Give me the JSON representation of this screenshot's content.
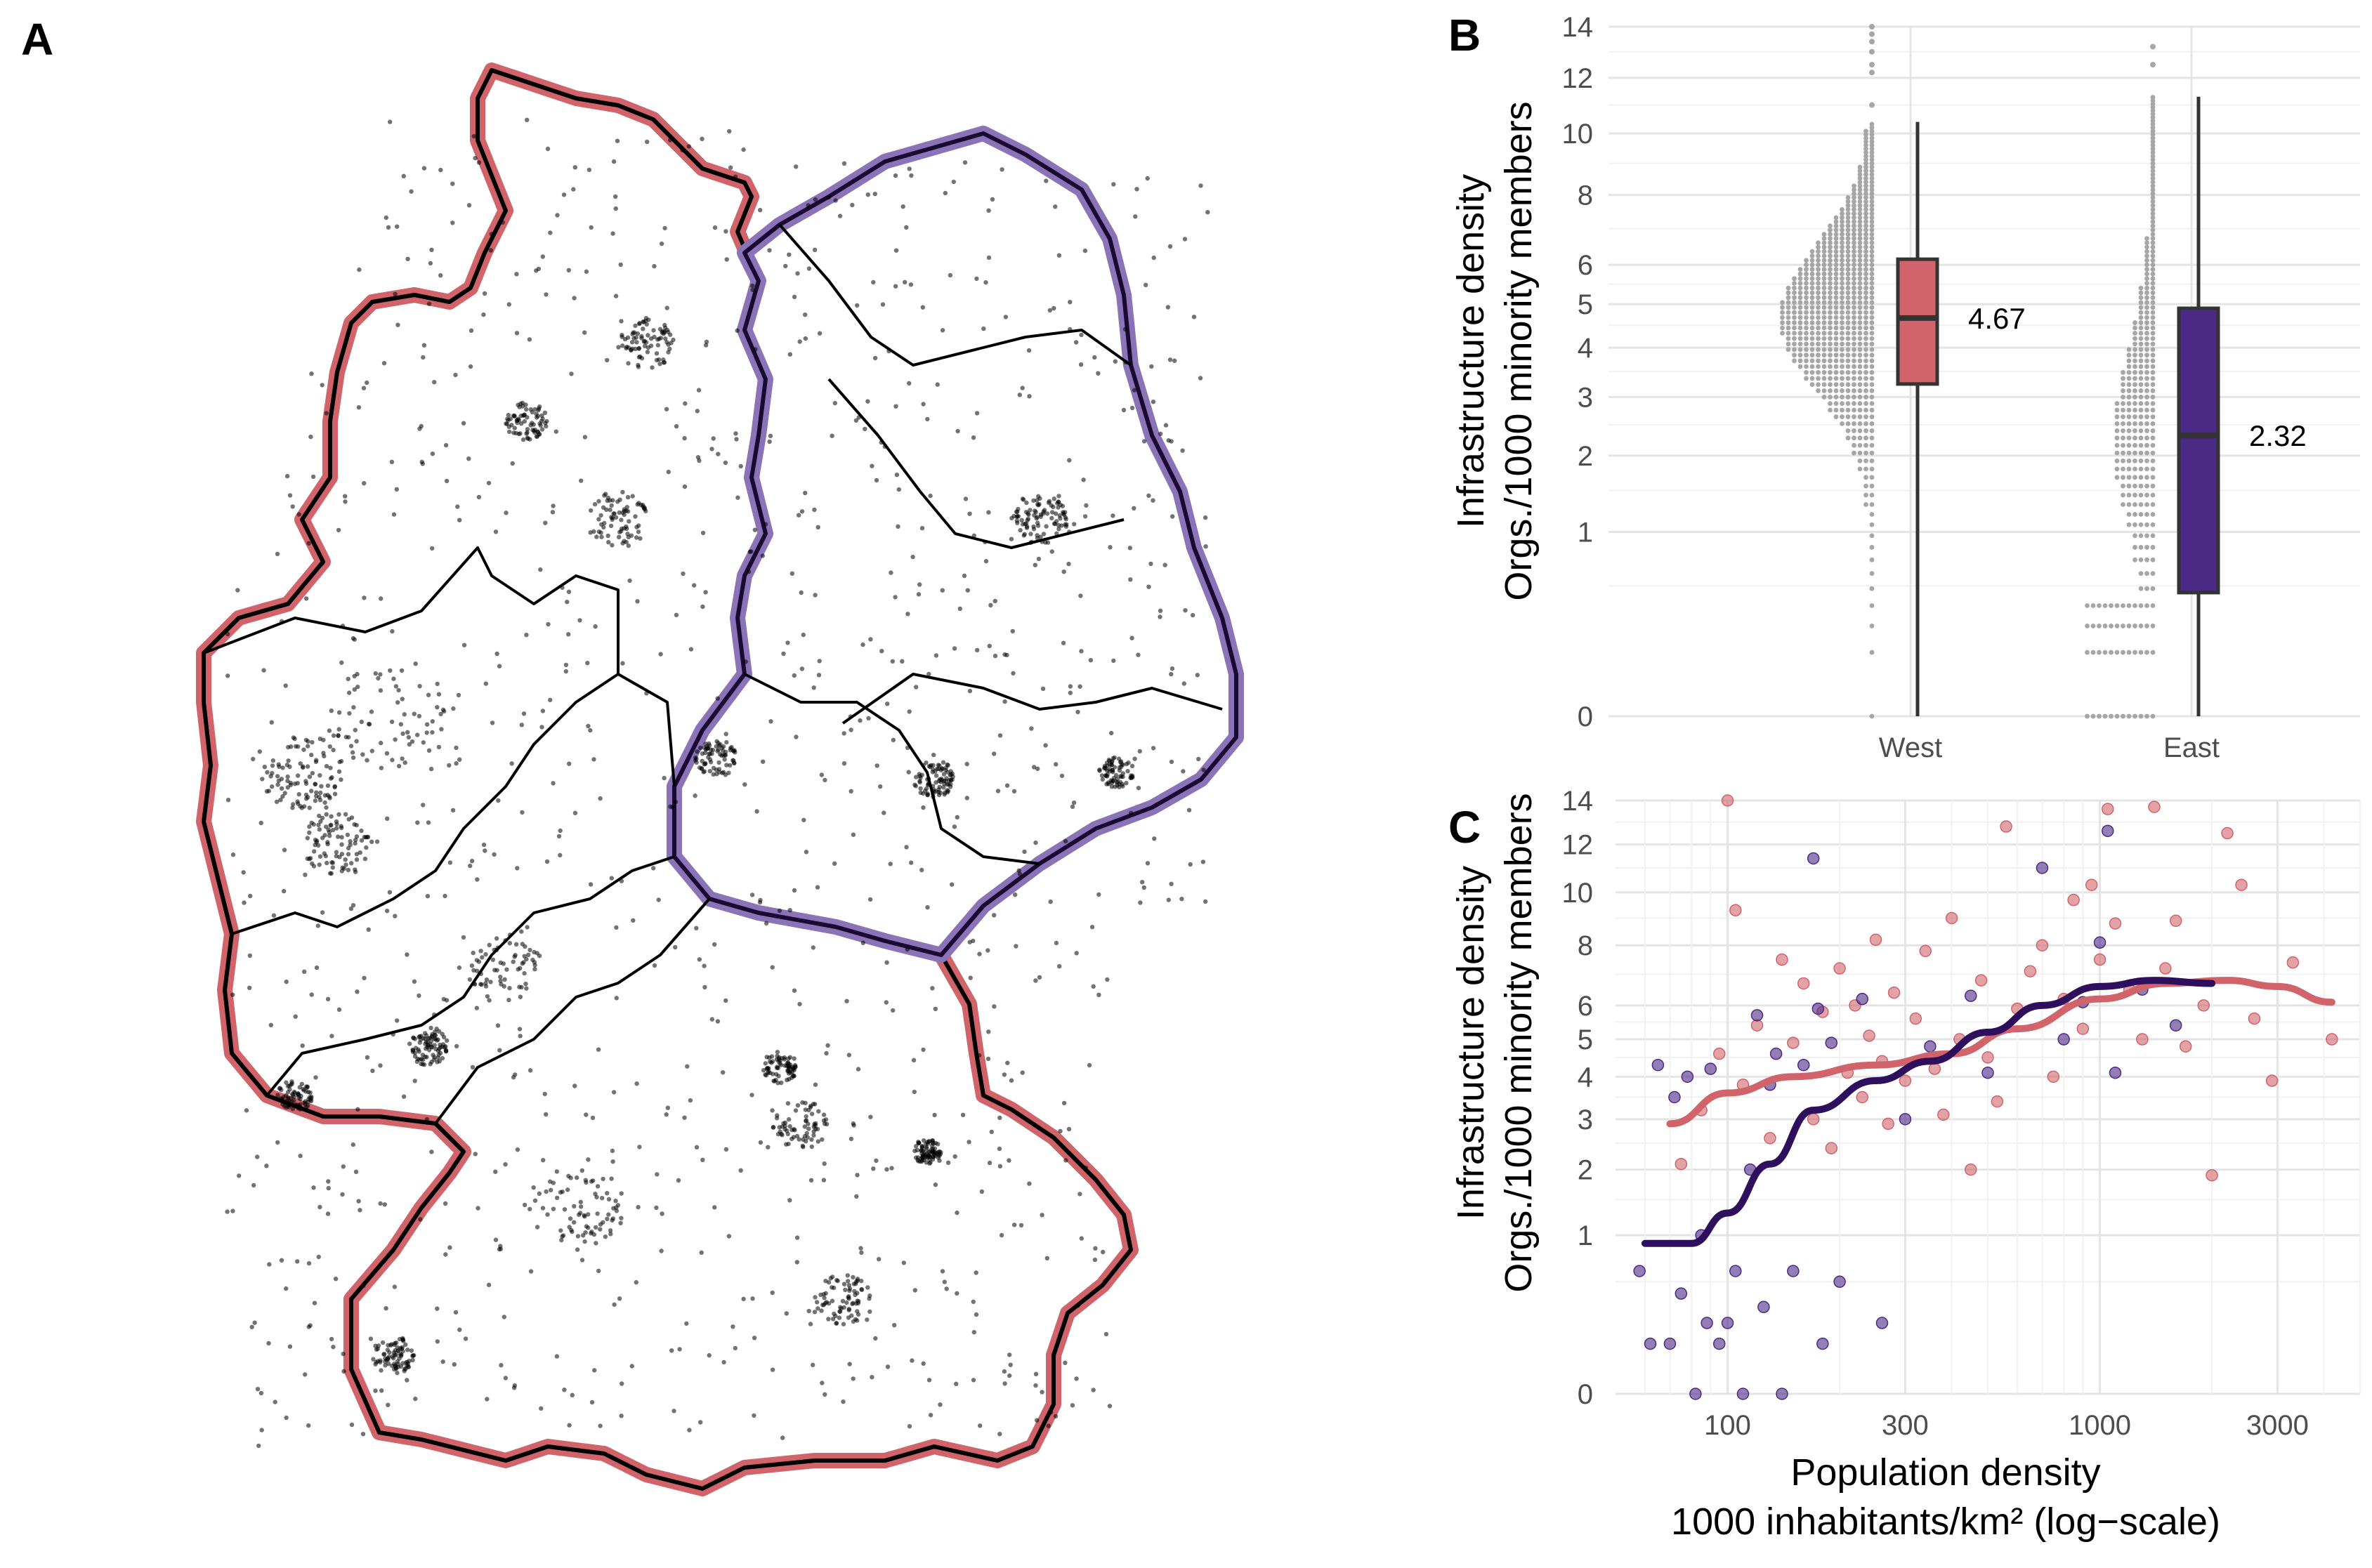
{
  "panels": {
    "a": "A",
    "b": "B",
    "c": "C"
  },
  "colors": {
    "west": "#d0646a",
    "east": "#4b2a86",
    "east_line": "#2d0f5e",
    "dots": "#a6a6a6",
    "map_points": "#000000"
  },
  "chart_data": [
    {
      "panel": "A",
      "type": "map",
      "title": "",
      "regions": [
        "West",
        "East"
      ],
      "note": "Point map of Germany showing organization locations; West outlined in red, East outlined in purple"
    },
    {
      "panel": "B",
      "type": "box",
      "title": "",
      "ylabel_line1": "Infrastructure density",
      "ylabel_line2": "Orgs./1000 minority members",
      "categories": [
        "West",
        "East"
      ],
      "yticks": [
        "0",
        "1",
        "2",
        "3",
        "4",
        "5",
        "6",
        "8",
        "10",
        "12",
        "14"
      ],
      "y_scale": "sqrt",
      "ylim": [
        0,
        14
      ],
      "boxes": [
        {
          "name": "West",
          "q1": 3.25,
          "median": 4.67,
          "q3": 6.15,
          "whisker_low": 0,
          "whisker_high": 10.4,
          "label": "4.67",
          "outliers": [
            11.0,
            12.2,
            12.5,
            13.0,
            13.4,
            13.7,
            14.0
          ]
        },
        {
          "name": "East",
          "q1": 0.45,
          "median": 2.32,
          "q3": 4.9,
          "whisker_low": 0,
          "whisker_high": 11.3,
          "label": "2.32",
          "outliers": [
            12.5,
            13.2
          ]
        }
      ]
    },
    {
      "panel": "C",
      "type": "scatter",
      "title": "",
      "xlabel_line1": "Population density",
      "xlabel_line2": "1000 inhabitants/km² (log−scale)",
      "ylabel_line1": "Infrastructure density",
      "ylabel_line2": "Orgs./1000 minority members",
      "x_scale": "log",
      "y_scale": "sqrt",
      "xlim": [
        50,
        5000
      ],
      "ylim": [
        0,
        14
      ],
      "xticks": [
        "100",
        "300",
        "1000",
        "3000"
      ],
      "yticks": [
        "0",
        "1",
        "2",
        "3",
        "4",
        "5",
        "6",
        "8",
        "10",
        "12",
        "14"
      ],
      "series": [
        {
          "name": "West",
          "smooth": [
            [
              70,
              2.9
            ],
            [
              100,
              3.6
            ],
            [
              150,
              4.0
            ],
            [
              250,
              4.3
            ],
            [
              400,
              4.6
            ],
            [
              600,
              5.3
            ],
            [
              1000,
              6.2
            ],
            [
              1500,
              6.7
            ],
            [
              2200,
              6.8
            ],
            [
              3000,
              6.6
            ],
            [
              4200,
              6.1
            ]
          ],
          "points": [
            [
              75,
              2.1
            ],
            [
              85,
              3.2
            ],
            [
              95,
              4.6
            ],
            [
              100,
              14.0
            ],
            [
              105,
              9.3
            ],
            [
              110,
              3.8
            ],
            [
              120,
              5.4
            ],
            [
              130,
              2.6
            ],
            [
              140,
              7.5
            ],
            [
              150,
              4.9
            ],
            [
              160,
              6.7
            ],
            [
              170,
              3.0
            ],
            [
              180,
              5.8
            ],
            [
              190,
              2.4
            ],
            [
              200,
              7.2
            ],
            [
              210,
              4.1
            ],
            [
              220,
              6.0
            ],
            [
              230,
              3.5
            ],
            [
              240,
              5.1
            ],
            [
              250,
              8.2
            ],
            [
              260,
              4.4
            ],
            [
              270,
              2.9
            ],
            [
              280,
              6.4
            ],
            [
              300,
              3.9
            ],
            [
              320,
              5.6
            ],
            [
              340,
              7.8
            ],
            [
              360,
              4.2
            ],
            [
              380,
              3.1
            ],
            [
              400,
              9.0
            ],
            [
              420,
              5.0
            ],
            [
              450,
              2.0
            ],
            [
              480,
              6.8
            ],
            [
              500,
              4.5
            ],
            [
              530,
              3.4
            ],
            [
              560,
              12.8
            ],
            [
              600,
              5.9
            ],
            [
              650,
              7.1
            ],
            [
              700,
              8.0
            ],
            [
              750,
              4.0
            ],
            [
              800,
              6.2
            ],
            [
              850,
              9.7
            ],
            [
              900,
              5.3
            ],
            [
              950,
              10.3
            ],
            [
              1000,
              7.5
            ],
            [
              1050,
              13.6
            ],
            [
              1100,
              8.8
            ],
            [
              1200,
              6.5
            ],
            [
              1300,
              5.0
            ],
            [
              1400,
              13.7
            ],
            [
              1500,
              7.2
            ],
            [
              1600,
              8.9
            ],
            [
              1700,
              4.8
            ],
            [
              1900,
              6.0
            ],
            [
              2000,
              1.9
            ],
            [
              2200,
              12.5
            ],
            [
              2400,
              10.3
            ],
            [
              2600,
              5.6
            ],
            [
              2900,
              3.9
            ],
            [
              3300,
              7.4
            ],
            [
              4200,
              5.0
            ]
          ]
        },
        {
          "name": "East",
          "smooth": [
            [
              60,
              0.9
            ],
            [
              80,
              0.9
            ],
            [
              100,
              1.3
            ],
            [
              130,
              2.1
            ],
            [
              170,
              3.2
            ],
            [
              250,
              3.9
            ],
            [
              350,
              4.4
            ],
            [
              500,
              5.2
            ],
            [
              700,
              6.0
            ],
            [
              1000,
              6.6
            ],
            [
              1400,
              6.8
            ],
            [
              2000,
              6.7
            ]
          ],
          "points": [
            [
              58,
              0.6
            ],
            [
              62,
              0.1
            ],
            [
              65,
              4.3
            ],
            [
              70,
              0.1
            ],
            [
              72,
              3.5
            ],
            [
              75,
              0.4
            ],
            [
              78,
              4.0
            ],
            [
              82,
              0.0
            ],
            [
              85,
              1.0
            ],
            [
              88,
              0.2
            ],
            [
              90,
              4.2
            ],
            [
              95,
              0.1
            ],
            [
              100,
              0.2
            ],
            [
              105,
              0.6
            ],
            [
              110,
              0.0
            ],
            [
              115,
              2.0
            ],
            [
              120,
              5.7
            ],
            [
              125,
              0.3
            ],
            [
              130,
              3.8
            ],
            [
              135,
              4.6
            ],
            [
              140,
              0.0
            ],
            [
              150,
              0.6
            ],
            [
              160,
              4.3
            ],
            [
              170,
              11.4
            ],
            [
              175,
              5.9
            ],
            [
              180,
              0.1
            ],
            [
              190,
              4.9
            ],
            [
              200,
              0.5
            ],
            [
              230,
              6.2
            ],
            [
              260,
              0.2
            ],
            [
              300,
              3.0
            ],
            [
              350,
              4.8
            ],
            [
              450,
              6.3
            ],
            [
              500,
              4.1
            ],
            [
              700,
              11.0
            ],
            [
              800,
              5.0
            ],
            [
              900,
              6.1
            ],
            [
              1000,
              8.1
            ],
            [
              1050,
              12.6
            ],
            [
              1100,
              4.1
            ],
            [
              1300,
              6.5
            ],
            [
              1600,
              5.4
            ]
          ]
        }
      ]
    }
  ]
}
